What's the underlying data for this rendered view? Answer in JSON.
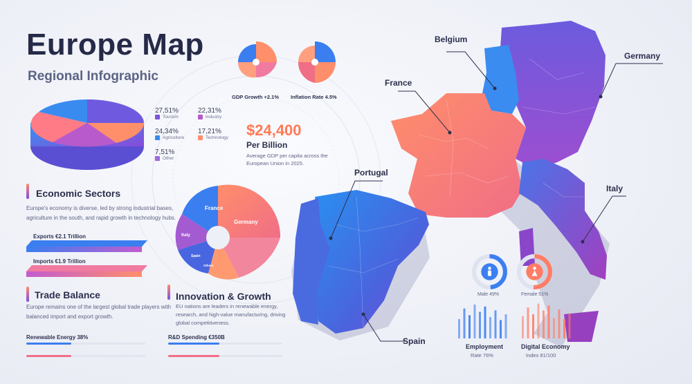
{
  "header": {
    "title": "Europe Map",
    "subtitle": "Regional Infographic"
  },
  "sector_legend": [
    {
      "pct": "27,51%",
      "label": "Tourism",
      "color": "#7a55dc"
    },
    {
      "pct": "22,31%",
      "label": "Industry",
      "color": "#b85acb"
    },
    {
      "pct": "24,34%",
      "label": "Agriculture",
      "color": "#3a8bf0"
    },
    {
      "pct": "17,21%",
      "label": "Technology",
      "color": "#ff8f6e"
    },
    {
      "pct": "7,51%",
      "label": "Other",
      "color": "#9c6ad8"
    }
  ],
  "economic_sectors": {
    "title": "Economic Sectors",
    "body": "Europe's economy is diverse, led by strong industrial bases, agriculture in the south, and rapid growth in technology hubs."
  },
  "exports": {
    "label": "Exports €2.1 Trillion",
    "value": 2.1
  },
  "imports": {
    "label": "Imports €1.9 Trillion",
    "value": 1.9
  },
  "trade_balance": {
    "title": "Trade Balance",
    "body": "Europe remains one of the largest global trade players with balanced import and export growth."
  },
  "renewable": {
    "label": "Renewable Energy 38%",
    "value": 38
  },
  "rd_spending": {
    "label": "R&D Spending €350B"
  },
  "gdp_growth": {
    "label": "GDP Growth +2.1%"
  },
  "inflation": {
    "label": "Inflation Rate 4.5%"
  },
  "headline": {
    "value": "$24,400",
    "unit": "Per Billion",
    "body": "Average GDP per capita across the European Union in 2025."
  },
  "country_pie": {
    "labels": {
      "france": "France",
      "germany": "Germany",
      "italy": "Italy",
      "spain": "Spain",
      "others": "Others"
    }
  },
  "innovation": {
    "title": "Innovation & Growth",
    "body": "EU nations are leaders in renewable energy, research, and high-value manufacturing, driving global competitiveness."
  },
  "map_labels": {
    "belgium": "Belgium",
    "germany": "Germany",
    "france": "France",
    "portugal": "Portugal",
    "italy": "Italy",
    "spain": "Spain"
  },
  "gender": {
    "male": {
      "label": "Male 49%",
      "value": 49,
      "color": "#3b7ff0"
    },
    "female": {
      "label": "Female 51%",
      "value": 51,
      "color": "#ff7d66"
    }
  },
  "employment": {
    "title": "Employment",
    "sub": "Rate 76%",
    "bars": [
      40,
      62,
      48,
      70,
      55,
      66,
      44,
      58,
      38,
      50
    ],
    "color": "#3a7ef0"
  },
  "digital": {
    "title": "Digital Economy",
    "sub": "Index 81/100",
    "bars": [
      46,
      64,
      50,
      72,
      58,
      68,
      42,
      60,
      40,
      52
    ],
    "color": "#ff7d66"
  },
  "colors": {
    "blue": "#3a7ef0",
    "purple": "#7a4fe0",
    "coral": "#ff8466",
    "pink": "#e86aa2"
  }
}
